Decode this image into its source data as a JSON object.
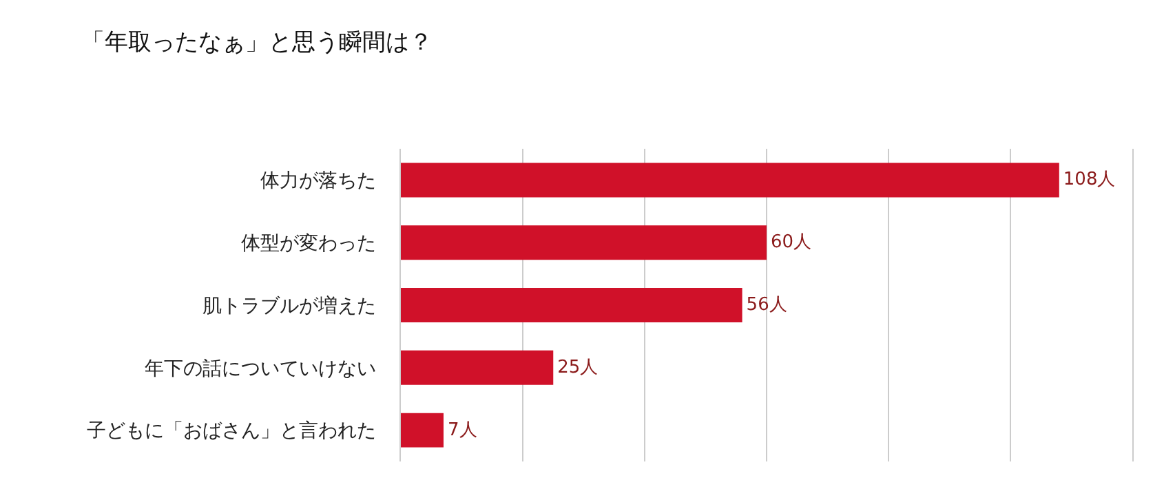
{
  "chart_data": {
    "type": "bar",
    "orientation": "horizontal",
    "title": "「年取ったなぁ」と思う瞬間は？",
    "categories": [
      "体力が落ちた",
      "体型が変わった",
      "肌トラブルが増えた",
      "年下の話についていけない",
      "子どもに「おばさん」と言われた"
    ],
    "values": [
      108,
      60,
      56,
      25,
      7
    ],
    "value_labels": [
      "108人",
      "60人",
      "56人",
      "25人",
      "7人"
    ],
    "color": "#d01129",
    "xlim": [
      0,
      120
    ],
    "xticks": [
      {
        "value": 0,
        "label": null
      },
      {
        "value": 20,
        "label": null
      },
      {
        "value": 40,
        "label": null
      },
      {
        "value": 60,
        "label": null
      },
      {
        "value": 80,
        "label": null
      },
      {
        "value": 100,
        "label": null
      },
      {
        "value": 120,
        "label": null
      }
    ],
    "grid": "x",
    "tick_labels": "y"
  }
}
